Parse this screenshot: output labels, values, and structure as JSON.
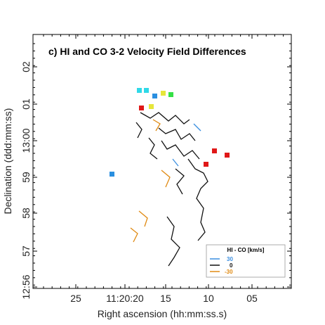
{
  "chart_data": {
    "type": "heatmap",
    "title": "c) HI and CO 3-2 Velocity Field Differences",
    "xlabel": "Right ascension (hh:mm:ss.s)",
    "ylabel": "Declination (ddd:mm:ss)",
    "x_ticks": [
      "25",
      "11:20:20",
      "15",
      "10",
      "05"
    ],
    "y_ticks": [
      "12:56",
      "57",
      "58",
      "59",
      "13:00",
      "01",
      "02"
    ],
    "legend": {
      "title": "HI - CO [km/s]",
      "placement": "bottom-right",
      "entries": [
        {
          "value": "30",
          "color": "#3b8fe0"
        },
        {
          "value": "0",
          "color": "#111111"
        },
        {
          "value": "-30",
          "color": "#e08a12"
        }
      ]
    },
    "colors": {
      "positive_30": "#3b8fe0",
      "zero": "#111111",
      "negative_30": "#e08a12",
      "map_green": "#35e045",
      "map_cyan": "#2fd9e8",
      "map_blue": "#2235d6",
      "map_red": "#e01818"
    }
  }
}
